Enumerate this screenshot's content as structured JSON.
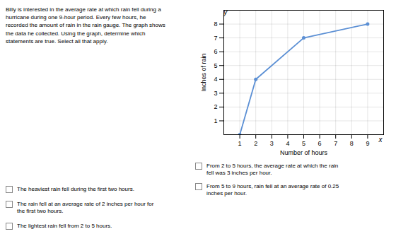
{
  "chart_data": {
    "type": "line",
    "x": [
      1,
      2,
      5,
      9
    ],
    "values": [
      0,
      4,
      7,
      8
    ],
    "color": "#5B8FD4",
    "marker": "circle",
    "xlabel": "Number of hours",
    "ylabel": "Inches of rain",
    "xlim": [
      0,
      10
    ],
    "ylim": [
      0,
      9
    ],
    "xticks": [
      1,
      2,
      3,
      4,
      5,
      6,
      7,
      8,
      9
    ],
    "yticks": [
      1,
      2,
      3,
      4,
      5,
      6,
      7,
      8
    ],
    "grid": true,
    "annotations": [
      {
        "text": "y",
        "x": 0.1,
        "y": 8.85
      },
      {
        "text": "x",
        "x": 9.8,
        "y": -0.35
      },
      {
        "text": "Billy is interested in the average rate at which rain fell during a\nhurricane during one 9-hour period. Every few hours, he\nrecorded the amount of rain in the rain gauge. The graph shows\nthe data he collected. Using the graph, determine which\nstatements are true. Select all that apply."
      },
      {
        "text": "The heaviest rain fell during the first two hours."
      },
      {
        "text": "The rain fell at an average rate of 2 inches per hour for\nthe first two hours."
      },
      {
        "text": "The lightest rain fell from 2 to 5 hours."
      },
      {
        "text": "From 2 to 5 hours, the average rate at which the rain\nfell was 3 inches per hour."
      },
      {
        "text": "From 5 to 9 hours, rain fell at an average rate of 0.25\ninches per hour."
      }
    ]
  }
}
